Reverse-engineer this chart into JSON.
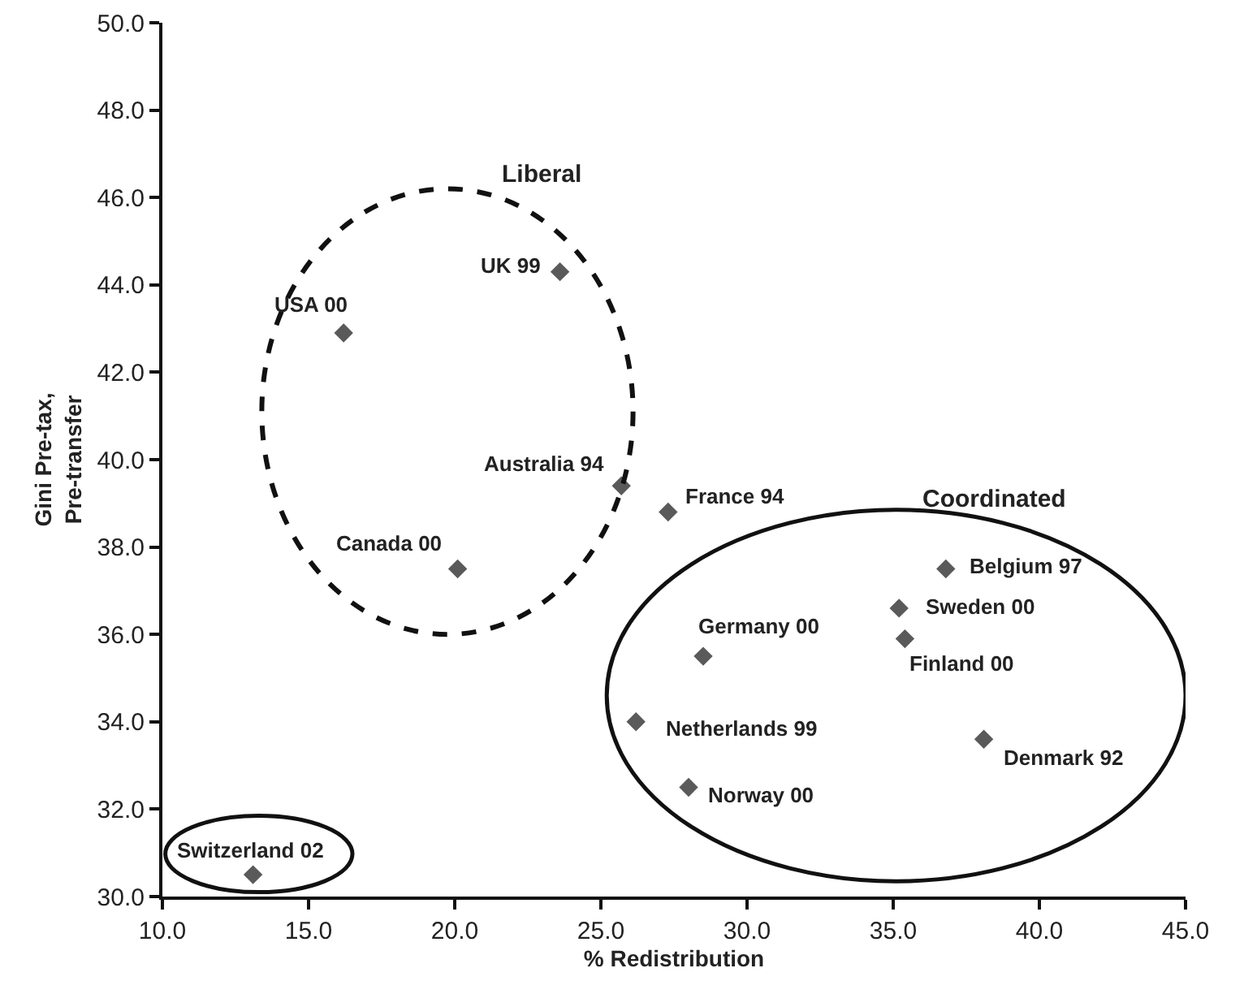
{
  "chart_data": {
    "type": "scatter",
    "xlabel": "% Redistribution",
    "ylabel": "Gini Pre-tax,\nPre-transfer",
    "x": [
      16.2,
      23.6,
      25.7,
      20.1,
      13.1,
      27.3,
      36.8,
      35.2,
      35.4,
      28.5,
      26.2,
      28.0,
      38.1
    ],
    "series": [
      {
        "color": "#5a5a5a",
        "values": [
          42.9,
          44.3,
          39.4,
          37.5,
          30.5,
          38.8,
          37.5,
          36.6,
          35.9,
          35.5,
          34.0,
          32.5,
          33.6
        ]
      }
    ],
    "marker": "diamond",
    "grid": false,
    "xlim": [
      10,
      45
    ],
    "ylim": [
      30,
      50
    ],
    "xticks": [
      {
        "value": 10,
        "label": "10.0"
      },
      {
        "value": 15,
        "label": "15.0"
      },
      {
        "value": 20,
        "label": "20.0"
      },
      {
        "value": 25,
        "label": "25.0"
      },
      {
        "value": 30,
        "label": "30.0"
      },
      {
        "value": 35,
        "label": "35.0"
      },
      {
        "value": 40,
        "label": "40.0"
      },
      {
        "value": 45,
        "label": "45.0"
      }
    ],
    "yticks": [
      {
        "value": 30,
        "label": "30.0"
      },
      {
        "value": 32,
        "label": "32.0"
      },
      {
        "value": 34,
        "label": "34.0"
      },
      {
        "value": 36,
        "label": "36.0"
      },
      {
        "value": 38,
        "label": "38.0"
      },
      {
        "value": 40,
        "label": "40.0"
      },
      {
        "value": 42,
        "label": "42.0"
      },
      {
        "value": 44,
        "label": "44.0"
      },
      {
        "value": 46,
        "label": "46.0"
      },
      {
        "value": 48,
        "label": "48.0"
      },
      {
        "value": 50,
        "label": "50.0"
      }
    ],
    "annotations": [
      {
        "text": "USA 00",
        "x": 16.2,
        "y": 42.9
      },
      {
        "text": "UK 99",
        "x": 23.6,
        "y": 44.3
      },
      {
        "text": "Australia 94",
        "x": 25.7,
        "y": 39.4
      },
      {
        "text": "Canada 00",
        "x": 20.1,
        "y": 37.5
      },
      {
        "text": "Switzerland 02",
        "x": 13.1,
        "y": 30.5
      },
      {
        "text": "France 94",
        "x": 27.3,
        "y": 38.8
      },
      {
        "text": "Belgium 97",
        "x": 36.8,
        "y": 37.5
      },
      {
        "text": "Sweden 00",
        "x": 35.2,
        "y": 36.6
      },
      {
        "text": "Finland 00",
        "x": 35.4,
        "y": 35.9
      },
      {
        "text": "Germany 00",
        "x": 28.5,
        "y": 35.5
      },
      {
        "text": "Netherlands 99",
        "x": 26.2,
        "y": 34.0
      },
      {
        "text": "Norway 00",
        "x": 28.0,
        "y": 32.5
      },
      {
        "text": "Denmark 92",
        "x": 38.1,
        "y": 33.6
      },
      "Liberal",
      "Coordinated"
    ]
  }
}
